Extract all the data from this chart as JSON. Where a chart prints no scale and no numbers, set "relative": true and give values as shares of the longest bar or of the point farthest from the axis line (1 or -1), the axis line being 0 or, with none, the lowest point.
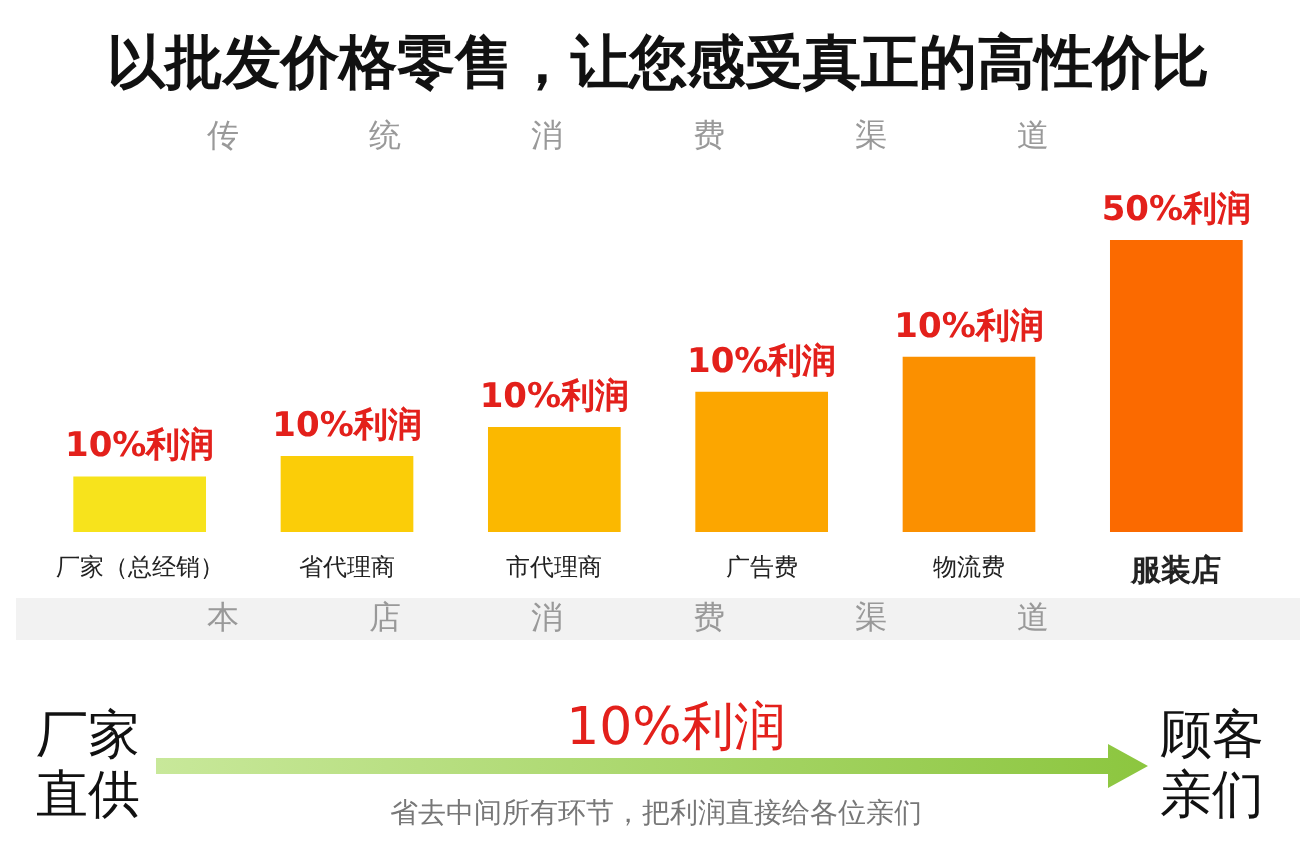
{
  "chart_data": {
    "type": "bar",
    "relative": true,
    "title": "以批发价格零售，让您感受真正的高性价比",
    "subtitle": "传 统 消 费 渠 道",
    "categories": [
      "厂家（总经销）",
      "省代理商",
      "市代理商",
      "广告费",
      "物流费",
      "服装店"
    ],
    "values": [
      0.19,
      0.26,
      0.36,
      0.48,
      0.6,
      1
    ],
    "colors": [
      "#f7e31c",
      "#fbcd08",
      "#fbb800",
      "#fca600",
      "#fb9000",
      "#fb6a00"
    ],
    "annotations": [
      {
        "text": "10%利润",
        "x": "厂家（总经销）",
        "y": 0.19
      },
      {
        "text": "10%利润",
        "x": "省代理商",
        "y": 0.26
      },
      {
        "text": "10%利润",
        "x": "市代理商",
        "y": 0.36
      },
      {
        "text": "10%利润",
        "x": "广告费",
        "y": 0.48
      },
      {
        "text": "10%利润",
        "x": "物流费",
        "y": 0.6
      },
      {
        "text": "50%利润",
        "x": "服装店",
        "y": 1
      },
      "本 店 消 费 渠 道",
      "厂家直供",
      "10%利润",
      "顾客亲们",
      "省去中间所有环节，把利润直接给各位亲们"
    ],
    "legend": false
  }
}
